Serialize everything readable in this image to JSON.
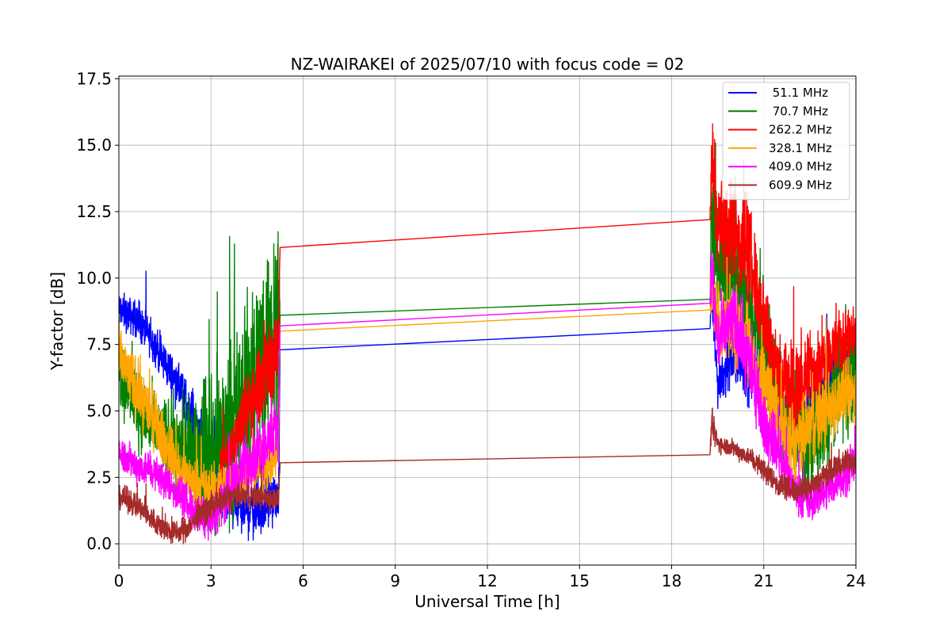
{
  "chart_data": {
    "type": "line",
    "title": "NZ-WAIRAKEI of 2025/07/10 with focus code = 02",
    "xlabel": "Universal Time [h]",
    "ylabel": "Y-factor [dB]",
    "xlim": [
      0,
      24
    ],
    "ylim": [
      -0.8,
      17.6
    ],
    "xticks": [
      0,
      3,
      6,
      9,
      12,
      15,
      18,
      21,
      24
    ],
    "xtick_labels": [
      "0",
      "3",
      "6",
      "9",
      "12",
      "15",
      "18",
      "21",
      "24"
    ],
    "yticks": [
      0.0,
      2.5,
      5.0,
      7.5,
      10.0,
      12.5,
      15.0,
      17.5
    ],
    "ytick_labels": [
      "0.0",
      "2.5",
      "5.0",
      "7.5",
      "10.0",
      "12.5",
      "15.0",
      "17.5"
    ],
    "grid": true,
    "legend_position": "top-right",
    "series": [
      {
        "name": " 51.1 MHz",
        "color": "#0000ff",
        "x": [
          0,
          0.5,
          1,
          1.5,
          2,
          2.5,
          3,
          3.5,
          4,
          4.5,
          5,
          5.2,
          5.25,
          19.25,
          19.3,
          19.5,
          20,
          20.5,
          21,
          21.5,
          22,
          22.5,
          23,
          23.5,
          24
        ],
        "y": [
          8.8,
          8.5,
          7.8,
          6.8,
          5.8,
          4.5,
          3.2,
          2.0,
          1.3,
          1.3,
          1.7,
          1.6,
          7.3,
          8.1,
          9.3,
          6.0,
          7.2,
          6.5,
          6.6,
          5.5,
          4.0,
          4.5,
          6.0,
          6.8,
          6.9
        ],
        "amp": [
          0.6,
          0.6,
          0.6,
          0.7,
          0.7,
          0.9,
          1.1,
          1.2,
          0.9,
          1.0,
          0.8,
          0.5,
          0,
          0,
          0.5,
          0.8,
          1.0,
          1.0,
          0.9,
          0.9,
          0.9,
          1.0,
          1.0,
          0.9,
          0.8
        ]
      },
      {
        "name": " 70.7 MHz",
        "color": "#008000",
        "x": [
          0,
          0.5,
          1,
          1.5,
          2,
          2.5,
          3,
          3.5,
          4,
          4.5,
          5,
          5.2,
          5.25,
          19.25,
          19.3,
          19.5,
          20,
          20.5,
          21,
          21.5,
          22,
          22.5,
          23,
          23.5,
          24
        ],
        "y": [
          6.5,
          5.5,
          4.5,
          4.0,
          3.5,
          3.3,
          3.5,
          4.0,
          5.0,
          6.5,
          8.0,
          9.0,
          8.6,
          9.2,
          12.0,
          10.5,
          10.0,
          9.0,
          7.5,
          5.5,
          3.8,
          3.5,
          4.5,
          6.0,
          6.5
        ],
        "amp": [
          1.2,
          1.3,
          1.2,
          1.3,
          1.5,
          1.8,
          2.8,
          2.6,
          3.0,
          3.2,
          3.6,
          3.0,
          0,
          0,
          1.8,
          2.0,
          1.8,
          1.8,
          1.6,
          1.5,
          1.5,
          1.5,
          1.7,
          1.9,
          1.7
        ]
      },
      {
        "name": "262.2 MHz",
        "color": "#ff0000",
        "x": [
          3.3,
          3.6,
          4,
          4.5,
          5,
          5.2,
          5.25,
          19.25,
          19.3,
          19.5,
          20,
          20.5,
          21,
          21.5,
          22,
          22.5,
          23,
          23.5,
          24
        ],
        "y": [
          3.0,
          3.5,
          4.5,
          6.0,
          7.0,
          8.0,
          11.15,
          12.2,
          14.5,
          12.0,
          11.8,
          11.0,
          8.5,
          6.5,
          5.5,
          6.5,
          7.0,
          7.5,
          8.0
        ],
        "amp": [
          0.6,
          0.8,
          1.0,
          1.5,
          1.8,
          1.6,
          0,
          0,
          1.8,
          1.5,
          1.8,
          1.7,
          1.4,
          1.5,
          1.6,
          1.3,
          1.1,
          1.1,
          1.2
        ]
      },
      {
        "name": "328.1 MHz",
        "color": "#ffa500",
        "x": [
          0,
          0.5,
          1,
          1.5,
          2,
          2.5,
          3,
          3.5,
          4,
          4.5,
          5,
          5.2,
          5.25,
          19.25,
          19.3,
          19.5,
          20,
          20.5,
          21,
          21.5,
          22,
          22.5,
          23,
          23.5,
          24
        ],
        "y": [
          7.0,
          6.0,
          5.0,
          3.8,
          2.8,
          2.2,
          2.0,
          2.3,
          2.5,
          2.8,
          3.0,
          3.5,
          8.0,
          8.8,
          9.5,
          8.5,
          8.0,
          7.5,
          6.0,
          4.5,
          3.5,
          4.5,
          5.0,
          5.5,
          5.8
        ],
        "amp": [
          1.0,
          1.0,
          1.0,
          0.9,
          0.8,
          0.8,
          0.8,
          0.7,
          0.7,
          0.8,
          0.8,
          0.8,
          0,
          0,
          1.2,
          1.3,
          1.3,
          1.2,
          1.1,
          1.2,
          1.3,
          1.2,
          1.2,
          1.1,
          1.1
        ]
      },
      {
        "name": "409.0 MHz",
        "color": "#ff00ff",
        "x": [
          0,
          0.5,
          1,
          1.5,
          2,
          2.5,
          3,
          3.5,
          4,
          4.5,
          5,
          5.2,
          5.25,
          19.25,
          19.3,
          19.5,
          20,
          20.5,
          21,
          21.5,
          22,
          22.5,
          23,
          23.5,
          24
        ],
        "y": [
          3.5,
          3.0,
          2.8,
          2.4,
          1.8,
          1.2,
          1.0,
          1.8,
          2.8,
          3.5,
          4.0,
          4.5,
          8.2,
          9.05,
          10.5,
          7.5,
          8.5,
          7.0,
          4.5,
          3.5,
          2.0,
          1.5,
          2.0,
          2.5,
          3.0
        ],
        "amp": [
          0.6,
          0.6,
          0.6,
          0.6,
          0.6,
          0.7,
          0.7,
          0.8,
          0.9,
          1.0,
          1.0,
          0.9,
          0,
          0,
          1.3,
          1.2,
          1.2,
          1.2,
          1.0,
          0.9,
          0.6,
          0.6,
          0.6,
          0.7,
          0.7
        ]
      },
      {
        "name": "609.9 MHz",
        "color": "#a52a2a",
        "x": [
          0,
          0.5,
          1,
          1.5,
          2,
          2.5,
          3,
          3.5,
          4,
          4.5,
          5,
          5.2,
          5.25,
          19.25,
          19.3,
          19.5,
          20,
          20.5,
          21,
          21.5,
          22,
          22.5,
          23,
          23.5,
          24
        ],
        "y": [
          1.8,
          1.5,
          1.0,
          0.5,
          0.4,
          0.9,
          1.4,
          1.7,
          1.8,
          1.8,
          1.7,
          1.7,
          3.05,
          3.35,
          4.5,
          3.8,
          3.6,
          3.3,
          2.8,
          2.2,
          2.0,
          2.2,
          2.6,
          3.0,
          3.2
        ],
        "amp": [
          0.4,
          0.4,
          0.4,
          0.4,
          0.4,
          0.4,
          0.4,
          0.4,
          0.4,
          0.4,
          0.4,
          0.4,
          0,
          0,
          0.6,
          0.3,
          0.3,
          0.3,
          0.4,
          0.4,
          0.4,
          0.4,
          0.4,
          0.4,
          0.4
        ]
      }
    ]
  }
}
